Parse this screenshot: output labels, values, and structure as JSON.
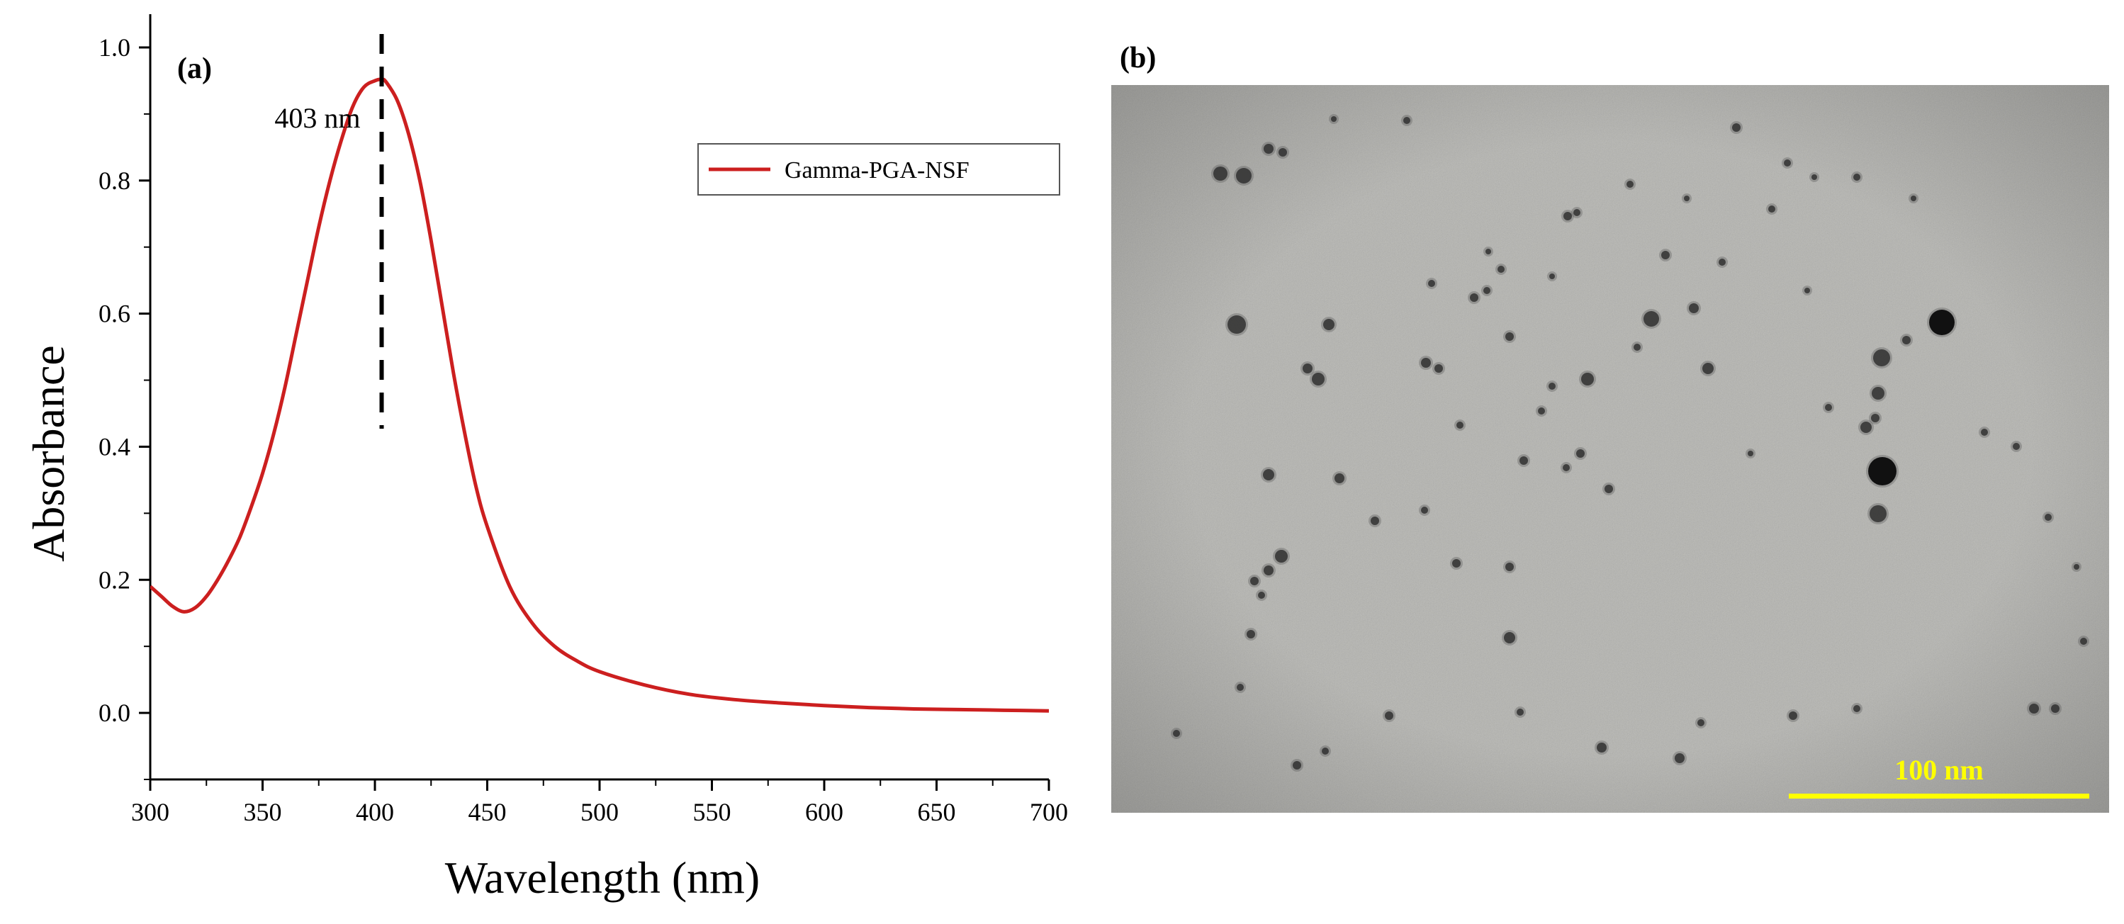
{
  "panels": {
    "a_label": "(a)",
    "b_label": "(b)"
  },
  "chart_data": {
    "type": "line",
    "xlabel": "Wavelength (nm)",
    "ylabel": "Absorbance",
    "xlim": [
      300,
      700
    ],
    "ylim": [
      -0.1,
      1.05
    ],
    "xticks": [
      300,
      350,
      400,
      450,
      500,
      550,
      600,
      650,
      700
    ],
    "yticks": [
      0.0,
      0.2,
      0.4,
      0.6,
      0.8,
      1.0
    ],
    "yticks_labels": [
      "0.0",
      "0.2",
      "0.4",
      "0.6",
      "0.8",
      "1.0"
    ],
    "grid": false,
    "legend_position": "top-right",
    "series": [
      {
        "name": "Gamma-PGA-NSF",
        "color": "#cc1f1f",
        "x": [
          300,
          305,
          310,
          315,
          320,
          325,
          330,
          335,
          340,
          345,
          350,
          355,
          360,
          365,
          370,
          375,
          380,
          385,
          390,
          395,
          400,
          403,
          405,
          410,
          415,
          420,
          425,
          430,
          435,
          440,
          445,
          450,
          460,
          470,
          480,
          490,
          500,
          520,
          540,
          560,
          580,
          600,
          620,
          640,
          660,
          680,
          700
        ],
        "y": [
          0.19,
          0.175,
          0.16,
          0.152,
          0.158,
          0.175,
          0.2,
          0.23,
          0.265,
          0.31,
          0.36,
          0.42,
          0.49,
          0.57,
          0.65,
          0.73,
          0.8,
          0.86,
          0.91,
          0.94,
          0.95,
          0.952,
          0.948,
          0.92,
          0.87,
          0.8,
          0.71,
          0.61,
          0.51,
          0.42,
          0.34,
          0.28,
          0.19,
          0.135,
          0.1,
          0.078,
          0.062,
          0.042,
          0.028,
          0.02,
          0.015,
          0.011,
          0.008,
          0.006,
          0.005,
          0.004,
          0.003
        ]
      }
    ],
    "annotations": [
      {
        "text": "403 nm",
        "x": 403
      }
    ]
  },
  "tem_image": {
    "scale_bar_label": "100 nm",
    "scale_bar_color": "#ffff00",
    "background_color": "#b4b4b0"
  }
}
